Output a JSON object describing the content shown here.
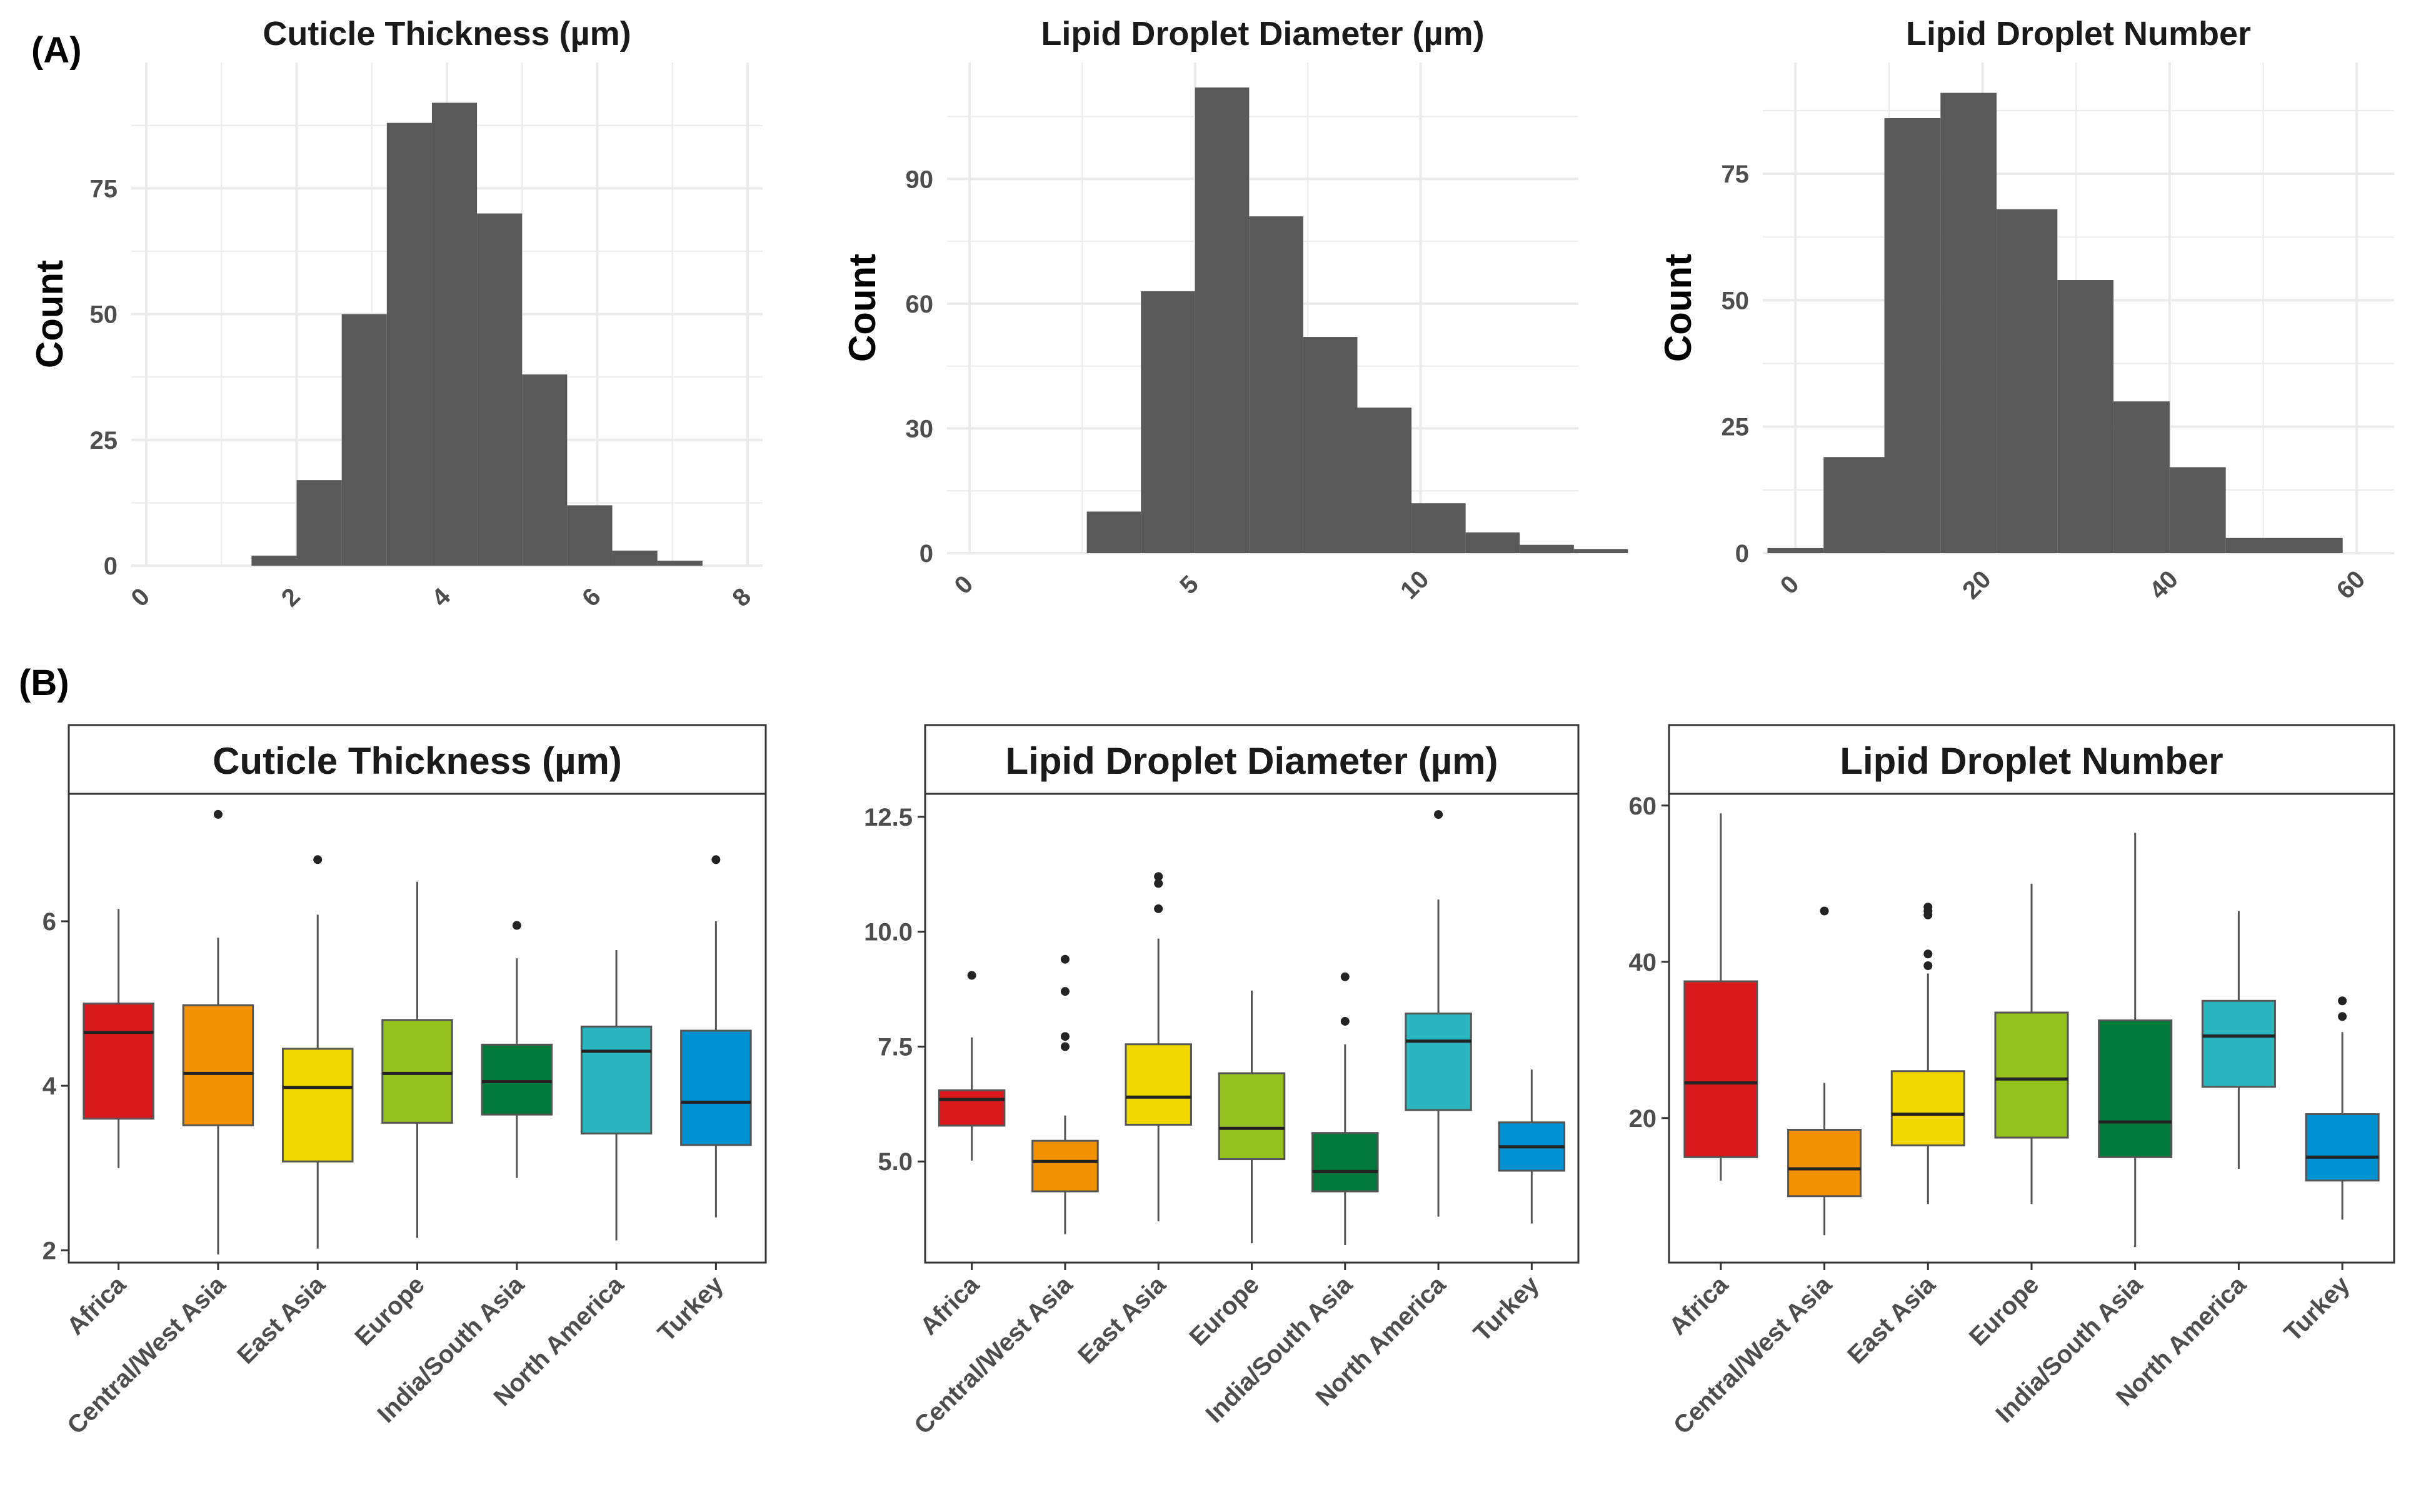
{
  "panel_labels": [
    "(A)",
    "(B)"
  ],
  "colors": {
    "bar_fill": "#595959",
    "grid": "#ebebeb",
    "Africa": "#d7191c",
    "Central/West Asia": "#f39200",
    "East Asia": "#f0d800",
    "Europe": "#95c11f",
    "India/South Asia": "#00793a",
    "North America": "#2bb6bf",
    "Turkey": "#0091d2"
  },
  "chart_data": [
    {
      "type": "histogram",
      "title": "Cuticle Thickness (µm)",
      "ylabel": "Count",
      "xlim": [
        -0.2,
        8.2
      ],
      "ylim": [
        0,
        100
      ],
      "x_ticks": [
        0,
        2,
        4,
        6,
        8
      ],
      "y_ticks": [
        0,
        25,
        50,
        75
      ],
      "bins": [
        {
          "x0": 1.4,
          "x1": 2.0,
          "count": 2
        },
        {
          "x0": 2.0,
          "x1": 2.6,
          "count": 17
        },
        {
          "x0": 2.6,
          "x1": 3.2,
          "count": 50
        },
        {
          "x0": 3.2,
          "x1": 3.8,
          "count": 88
        },
        {
          "x0": 3.8,
          "x1": 4.4,
          "count": 92
        },
        {
          "x0": 4.4,
          "x1": 5.0,
          "count": 70
        },
        {
          "x0": 5.0,
          "x1": 5.6,
          "count": 38
        },
        {
          "x0": 5.6,
          "x1": 6.2,
          "count": 12
        },
        {
          "x0": 6.2,
          "x1": 6.8,
          "count": 3
        },
        {
          "x0": 6.8,
          "x1": 7.4,
          "count": 1
        }
      ]
    },
    {
      "type": "histogram",
      "title": "Lipid Droplet Diameter (µm)",
      "ylabel": "Count",
      "xlim": [
        -0.5,
        13.5
      ],
      "ylim": [
        0,
        118
      ],
      "x_ticks": [
        0,
        5,
        10
      ],
      "y_ticks": [
        0,
        30,
        60,
        90
      ],
      "bins": [
        {
          "x0": 2.6,
          "x1": 3.8,
          "count": 10
        },
        {
          "x0": 3.8,
          "x1": 5.0,
          "count": 63
        },
        {
          "x0": 5.0,
          "x1": 6.2,
          "count": 112
        },
        {
          "x0": 6.2,
          "x1": 7.4,
          "count": 81
        },
        {
          "x0": 7.4,
          "x1": 8.6,
          "count": 52
        },
        {
          "x0": 8.6,
          "x1": 9.8,
          "count": 35
        },
        {
          "x0": 9.8,
          "x1": 11.0,
          "count": 12
        },
        {
          "x0": 11.0,
          "x1": 12.2,
          "count": 5
        },
        {
          "x0": 12.2,
          "x1": 13.4,
          "count": 2
        },
        {
          "x0": 13.4,
          "x1": 14.6,
          "count": 1
        }
      ]
    },
    {
      "type": "histogram",
      "title": "Lipid Droplet Number",
      "ylabel": "Count",
      "xlim": [
        -3.5,
        64
      ],
      "ylim": [
        0,
        97
      ],
      "x_ticks": [
        0,
        20,
        40,
        60
      ],
      "y_ticks": [
        0,
        25,
        50,
        75
      ],
      "bins": [
        {
          "x0": -3.0,
          "x1": 3.0,
          "count": 1
        },
        {
          "x0": 3.0,
          "x1": 9.5,
          "count": 19
        },
        {
          "x0": 9.5,
          "x1": 15.5,
          "count": 86
        },
        {
          "x0": 15.5,
          "x1": 21.5,
          "count": 91
        },
        {
          "x0": 21.5,
          "x1": 28.0,
          "count": 68
        },
        {
          "x0": 28.0,
          "x1": 34.0,
          "count": 54
        },
        {
          "x0": 34.0,
          "x1": 40.0,
          "count": 30
        },
        {
          "x0": 40.0,
          "x1": 46.0,
          "count": 17
        },
        {
          "x0": 46.0,
          "x1": 58.5,
          "count": 3
        }
      ]
    },
    {
      "type": "boxplot",
      "title": "Cuticle Thickness (µm)",
      "ylim": [
        1.85,
        7.55
      ],
      "y_ticks": [
        2,
        4,
        6
      ],
      "categories": [
        "Africa",
        "Central/West Asia",
        "East Asia",
        "Europe",
        "India/South Asia",
        "North America",
        "Turkey"
      ],
      "boxes": [
        {
          "whisker_low": 3.0,
          "q1": 3.6,
          "median": 4.65,
          "q3": 5.0,
          "whisker_high": 6.15,
          "outliers": []
        },
        {
          "whisker_low": 1.95,
          "q1": 3.52,
          "median": 4.15,
          "q3": 4.98,
          "whisker_high": 5.8,
          "outliers": [
            7.3
          ]
        },
        {
          "whisker_low": 2.02,
          "q1": 3.08,
          "median": 3.98,
          "q3": 4.45,
          "whisker_high": 6.08,
          "outliers": [
            6.75
          ]
        },
        {
          "whisker_low": 2.15,
          "q1": 3.55,
          "median": 4.15,
          "q3": 4.8,
          "whisker_high": 6.48,
          "outliers": []
        },
        {
          "whisker_low": 2.88,
          "q1": 3.65,
          "median": 4.05,
          "q3": 4.5,
          "whisker_high": 5.55,
          "outliers": [
            5.95
          ]
        },
        {
          "whisker_low": 2.12,
          "q1": 3.42,
          "median": 4.42,
          "q3": 4.72,
          "whisker_high": 5.65,
          "outliers": []
        },
        {
          "whisker_low": 2.4,
          "q1": 3.28,
          "median": 3.8,
          "q3": 4.67,
          "whisker_high": 6.0,
          "outliers": [
            6.75
          ]
        }
      ]
    },
    {
      "type": "boxplot",
      "title": "Lipid Droplet Diameter (µm)",
      "ylim": [
        2.8,
        13.0
      ],
      "y_ticks": [
        5.0,
        7.5,
        10.0,
        12.5
      ],
      "y_tick_labels": [
        "5.0",
        "7.5",
        "10.0",
        "12.5"
      ],
      "categories": [
        "Africa",
        "Central/West Asia",
        "East Asia",
        "Europe",
        "India/South Asia",
        "North America",
        "Turkey"
      ],
      "boxes": [
        {
          "whisker_low": 5.02,
          "q1": 5.78,
          "median": 6.35,
          "q3": 6.55,
          "whisker_high": 7.7,
          "outliers": [
            9.05
          ]
        },
        {
          "whisker_low": 3.42,
          "q1": 4.35,
          "median": 5.0,
          "q3": 5.45,
          "whisker_high": 6.0,
          "outliers": [
            7.5,
            7.72,
            8.7,
            9.4
          ]
        },
        {
          "whisker_low": 3.7,
          "q1": 5.8,
          "median": 6.4,
          "q3": 7.55,
          "whisker_high": 9.85,
          "outliers": [
            10.5,
            11.05,
            11.2
          ]
        },
        {
          "whisker_low": 3.22,
          "q1": 5.05,
          "median": 5.72,
          "q3": 6.92,
          "whisker_high": 8.72,
          "outliers": []
        },
        {
          "whisker_low": 3.18,
          "q1": 4.35,
          "median": 4.78,
          "q3": 5.62,
          "whisker_high": 7.55,
          "outliers": [
            8.05,
            9.02
          ]
        },
        {
          "whisker_low": 3.8,
          "q1": 6.12,
          "median": 7.62,
          "q3": 8.22,
          "whisker_high": 10.7,
          "outliers": [
            12.55
          ]
        },
        {
          "whisker_low": 3.65,
          "q1": 4.8,
          "median": 5.32,
          "q3": 5.85,
          "whisker_high": 7.0,
          "outliers": []
        }
      ]
    },
    {
      "type": "boxplot",
      "title": "Lipid Droplet Number",
      "ylim": [
        1.5,
        61.5
      ],
      "y_ticks": [
        20,
        40,
        60
      ],
      "categories": [
        "Africa",
        "Central/West Asia",
        "East Asia",
        "Europe",
        "India/South Asia",
        "North America",
        "Turkey"
      ],
      "boxes": [
        {
          "whisker_low": 12,
          "q1": 15,
          "median": 24.5,
          "q3": 37.5,
          "whisker_high": 59,
          "outliers": []
        },
        {
          "whisker_low": 5,
          "q1": 10,
          "median": 13.5,
          "q3": 18.5,
          "whisker_high": 24.5,
          "outliers": [
            46.5
          ]
        },
        {
          "whisker_low": 9,
          "q1": 16.5,
          "median": 20.5,
          "q3": 26,
          "whisker_high": 38.5,
          "outliers": [
            39.5,
            41,
            46,
            46.5,
            47
          ]
        },
        {
          "whisker_low": 9,
          "q1": 17.5,
          "median": 25,
          "q3": 33.5,
          "whisker_high": 50,
          "outliers": []
        },
        {
          "whisker_low": 3.5,
          "q1": 15,
          "median": 19.5,
          "q3": 32.5,
          "whisker_high": 56.5,
          "outliers": []
        },
        {
          "whisker_low": 13.5,
          "q1": 24,
          "median": 30.5,
          "q3": 35,
          "whisker_high": 46.5,
          "outliers": []
        },
        {
          "whisker_low": 7,
          "q1": 12,
          "median": 15,
          "q3": 20.5,
          "whisker_high": 31,
          "outliers": [
            33,
            35
          ]
        }
      ]
    }
  ]
}
